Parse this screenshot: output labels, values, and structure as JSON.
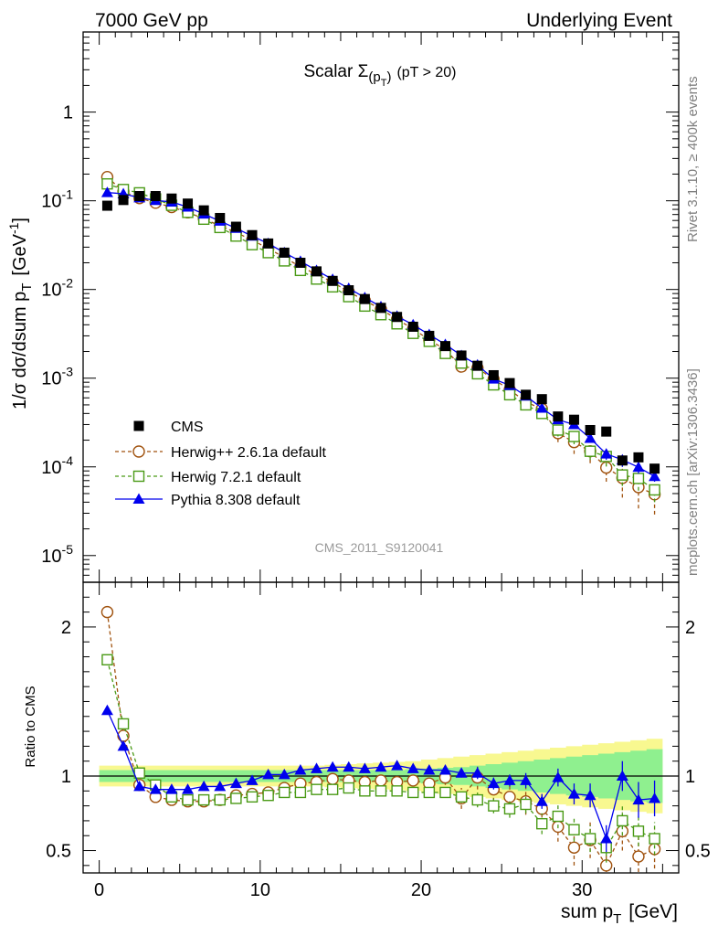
{
  "header": {
    "left": "7000 GeV pp",
    "right": "Underlying Event"
  },
  "side_labels": {
    "rivet": "Rivet 3.1.10, ≥ 400k events",
    "mcplots": "mcplots.cern.ch [arXiv:1306.3436]"
  },
  "watermark": "CMS_2011_S9120041",
  "chart_data": [
    {
      "type": "scatter",
      "panel": "main",
      "title_main": "Scalar Σ",
      "title_sub": "(p",
      "title_subT": "T",
      "title_close": ")",
      "title_cut": "(pT > 20)",
      "ylabel": "1/σ dσ/dsum p",
      "ylabel_sub": "T",
      "ylabel_unit": "[GeV",
      "ylabel_unit_sup": "-1",
      "ylabel_unit_close": "]",
      "yscale": "log",
      "xlim": [
        -1,
        36
      ],
      "ylim": [
        5e-06,
        8
      ],
      "ytick_labels": [
        {
          "value": 1,
          "base": "1",
          "exp": ""
        },
        {
          "value": 0.1,
          "base": "10",
          "exp": "-1"
        },
        {
          "value": 0.01,
          "base": "10",
          "exp": "-2"
        },
        {
          "value": 0.001,
          "base": "10",
          "exp": "-3"
        },
        {
          "value": 0.0001,
          "base": "10",
          "exp": "-4"
        },
        {
          "value": 1e-05,
          "base": "10",
          "exp": "-5"
        }
      ],
      "legend": {
        "placement": "lower-left",
        "entries": [
          {
            "key": "cms",
            "label": "CMS"
          },
          {
            "key": "herwigpp",
            "label": "Herwig++ 2.6.1a default"
          },
          {
            "key": "herwig7",
            "label": "Herwig 7.2.1 default"
          },
          {
            "key": "pythia",
            "label": "Pythia 8.308 default"
          }
        ]
      },
      "x": [
        0.5,
        1.5,
        2.5,
        3.5,
        4.5,
        5.5,
        6.5,
        7.5,
        8.5,
        9.5,
        10.5,
        11.5,
        12.5,
        13.5,
        14.5,
        15.5,
        16.5,
        17.5,
        18.5,
        19.5,
        20.5,
        21.5,
        22.5,
        23.5,
        24.5,
        25.5,
        26.5,
        27.5,
        28.5,
        29.5,
        30.5,
        31.5,
        32.5,
        33.5,
        34.5
      ],
      "series": [
        {
          "key": "cms",
          "values": [
            0.088,
            0.102,
            0.113,
            0.113,
            0.106,
            0.093,
            0.078,
            0.064,
            0.051,
            0.041,
            0.033,
            0.026,
            0.02,
            0.016,
            0.0125,
            0.0098,
            0.0078,
            0.0062,
            0.0049,
            0.0038,
            0.003,
            0.0023,
            0.0018,
            0.00138,
            0.00108,
            0.00088,
            0.00065,
            0.00058,
            0.00037,
            0.00034,
            0.00026,
            0.00025,
            0.000118,
            0.000128,
            9.55e-05
          ]
        },
        {
          "key": "herwigpp",
          "values": [
            0.185,
            0.127,
            0.107,
            0.095,
            0.085,
            0.074,
            0.063,
            0.052,
            0.044,
            0.036,
            0.029,
            0.023,
            0.018,
            0.0149,
            0.0121,
            0.0094,
            0.0075,
            0.006,
            0.0046,
            0.0036,
            0.0027,
            0.0021,
            0.00135,
            0.0013,
            0.00097,
            0.00074,
            0.00054,
            0.00045,
            0.00024,
            0.00019,
            0.00015,
            9.8e-05,
            7.5e-05,
            5.9e-05,
            4.9e-05
          ],
          "err_lo": [
            0,
            0,
            0,
            0,
            0,
            0,
            0,
            0,
            0,
            0,
            0,
            0,
            0,
            0,
            0,
            0,
            0,
            0,
            0,
            0,
            0,
            0,
            0,
            0,
            0,
            0,
            0,
            0,
            5e-05,
            5e-05,
            4e-05,
            3e-05,
            3e-05,
            2.5e-05,
            2e-05
          ],
          "err_hi": [
            0,
            0,
            0,
            0,
            0,
            0,
            0,
            0,
            0,
            0,
            0,
            0,
            0,
            0,
            0,
            0,
            0,
            0,
            0,
            0,
            0,
            0,
            0,
            0,
            0,
            0,
            0,
            0,
            4e-05,
            4e-05,
            3e-05,
            2e-05,
            2e-05,
            2e-05,
            1.5e-05
          ]
        },
        {
          "key": "herwig7",
          "values": [
            0.155,
            0.134,
            0.123,
            0.105,
            0.089,
            0.074,
            0.062,
            0.05,
            0.04,
            0.032,
            0.026,
            0.021,
            0.0164,
            0.0131,
            0.0107,
            0.0083,
            0.0065,
            0.0052,
            0.0041,
            0.0032,
            0.0026,
            0.0019,
            0.00148,
            0.00112,
            0.00084,
            0.00065,
            0.0005,
            0.0004,
            0.00026,
            0.00022,
            0.00015,
            0.000131,
            8.1e-05,
            7.4e-05,
            5.5e-05
          ],
          "err_lo": [
            0,
            0,
            0,
            0,
            0,
            0,
            0,
            0,
            0,
            0,
            0,
            0,
            0,
            0,
            0,
            0,
            0,
            0,
            0,
            0,
            0,
            0,
            0,
            0,
            0,
            0,
            0,
            0,
            4e-05,
            4e-05,
            3e-05,
            3e-05,
            2e-05,
            2e-05,
            1.5e-05
          ],
          "err_hi": [
            0,
            0,
            0,
            0,
            0,
            0,
            0,
            0,
            0,
            0,
            0,
            0,
            0,
            0,
            0,
            0,
            0,
            0,
            0,
            0,
            0,
            0,
            0,
            0,
            0,
            0,
            0,
            0,
            3e-05,
            3e-05,
            2e-05,
            2e-05,
            2e-05,
            1.5e-05,
            1e-05
          ]
        },
        {
          "key": "pythia",
          "values": [
            0.124,
            0.12,
            0.108,
            0.101,
            0.097,
            0.085,
            0.071,
            0.059,
            0.049,
            0.04,
            0.033,
            0.026,
            0.0208,
            0.0164,
            0.013,
            0.0103,
            0.0081,
            0.0064,
            0.005,
            0.004,
            0.0031,
            0.0024,
            0.0018,
            0.00141,
            0.00098,
            0.00083,
            0.00063,
            0.00046,
            0.00034,
            0.0003,
            0.00021,
            0.00014,
            0.00012,
            9.9e-05,
            7.8e-05
          ],
          "err_lo": [
            0,
            0,
            0,
            0,
            0,
            0,
            0,
            0,
            0,
            0,
            0,
            0,
            0,
            0,
            0,
            0,
            0,
            0,
            0,
            0,
            0,
            0,
            0,
            0,
            0,
            0,
            0,
            0,
            3e-05,
            3e-05,
            2e-05,
            2e-05,
            2e-05,
            1.5e-05,
            1e-05
          ],
          "err_hi": [
            0,
            0,
            0,
            0,
            0,
            0,
            0,
            0,
            0,
            0,
            0,
            0,
            0,
            0,
            0,
            0,
            0,
            0,
            0,
            0,
            0,
            0,
            0,
            0,
            0,
            0,
            0,
            0,
            2e-05,
            2e-05,
            2e-05,
            1.5e-05,
            1.5e-05,
            1e-05,
            1e-05
          ]
        }
      ]
    },
    {
      "type": "scatter",
      "panel": "ratio",
      "xlabel": "sum p",
      "xlabel_sub": "T",
      "xlabel_unit": "[GeV]",
      "ylabel": "Ratio to CMS",
      "xlim": [
        -1,
        36
      ],
      "ylim": [
        0.35,
        2.3
      ],
      "xticks": [
        0,
        10,
        20,
        30
      ],
      "yticks": [
        0.5,
        1,
        2
      ],
      "ytick_labels": [
        "0.5",
        "1",
        "2"
      ],
      "x": [
        0.5,
        1.5,
        2.5,
        3.5,
        4.5,
        5.5,
        6.5,
        7.5,
        8.5,
        9.5,
        10.5,
        11.5,
        12.5,
        13.5,
        14.5,
        15.5,
        16.5,
        17.5,
        18.5,
        19.5,
        20.5,
        21.5,
        22.5,
        23.5,
        24.5,
        25.5,
        26.5,
        27.5,
        28.5,
        29.5,
        30.5,
        31.5,
        32.5,
        33.5,
        34.5
      ],
      "band_inner": [
        0.04,
        0.04,
        0.04,
        0.04,
        0.04,
        0.04,
        0.04,
        0.04,
        0.04,
        0.04,
        0.04,
        0.04,
        0.04,
        0.04,
        0.04,
        0.04,
        0.04,
        0.04,
        0.04,
        0.045,
        0.05,
        0.055,
        0.06,
        0.07,
        0.08,
        0.09,
        0.1,
        0.11,
        0.12,
        0.13,
        0.14,
        0.15,
        0.16,
        0.17,
        0.18
      ],
      "band_outer": [
        0.07,
        0.07,
        0.07,
        0.07,
        0.07,
        0.07,
        0.07,
        0.07,
        0.07,
        0.07,
        0.07,
        0.07,
        0.07,
        0.07,
        0.075,
        0.08,
        0.085,
        0.09,
        0.095,
        0.1,
        0.11,
        0.12,
        0.13,
        0.14,
        0.15,
        0.16,
        0.17,
        0.18,
        0.19,
        0.2,
        0.21,
        0.22,
        0.23,
        0.24,
        0.25
      ],
      "series": [
        {
          "key": "herwigpp",
          "values": [
            2.1,
            1.27,
            0.94,
            0.86,
            0.84,
            0.83,
            0.83,
            0.84,
            0.87,
            0.88,
            0.89,
            0.92,
            0.95,
            0.96,
            0.98,
            0.97,
            0.96,
            0.97,
            0.96,
            0.97,
            0.95,
            0.99,
            0.85,
            0.99,
            0.91,
            0.86,
            0.83,
            0.78,
            0.66,
            0.52,
            0.57,
            0.4,
            0.63,
            0.46,
            0.51
          ],
          "err": [
            0,
            0,
            0,
            0,
            0,
            0,
            0,
            0,
            0,
            0,
            0,
            0,
            0,
            0,
            0,
            0,
            0,
            0,
            0,
            0,
            0.03,
            0.05,
            0.07,
            0.08,
            0.08,
            0.08,
            0.09,
            0.1,
            0.1,
            0.12,
            0.12,
            0.12,
            0.13,
            0.13,
            0.13
          ]
        },
        {
          "key": "herwig7",
          "values": [
            1.78,
            1.35,
            1.02,
            0.94,
            0.86,
            0.84,
            0.84,
            0.84,
            0.85,
            0.86,
            0.87,
            0.89,
            0.89,
            0.91,
            0.91,
            0.92,
            0.9,
            0.9,
            0.9,
            0.89,
            0.89,
            0.89,
            0.86,
            0.84,
            0.8,
            0.78,
            0.81,
            0.68,
            0.73,
            0.64,
            0.58,
            0.52,
            0.7,
            0.63,
            0.58
          ],
          "err": [
            0,
            0,
            0,
            0,
            0,
            0,
            0,
            0,
            0,
            0,
            0,
            0,
            0,
            0,
            0,
            0,
            0,
            0,
            0,
            0,
            0.02,
            0.03,
            0.04,
            0.05,
            0.05,
            0.06,
            0.06,
            0.07,
            0.08,
            0.08,
            0.09,
            0.1,
            0.1,
            0.1,
            0.11
          ]
        },
        {
          "key": "pythia",
          "values": [
            1.44,
            1.2,
            0.93,
            0.91,
            0.91,
            0.91,
            0.93,
            0.93,
            0.95,
            0.97,
            1.01,
            1.01,
            1.04,
            1.05,
            1.06,
            1.06,
            1.05,
            1.06,
            1.07,
            1.05,
            1.04,
            1.04,
            1.02,
            1.02,
            0.95,
            0.97,
            0.97,
            0.83,
            0.99,
            0.88,
            0.87,
            0.58,
            1.0,
            0.84,
            0.85
          ],
          "err": [
            0,
            0,
            0,
            0,
            0,
            0,
            0,
            0,
            0,
            0,
            0,
            0,
            0,
            0,
            0,
            0,
            0,
            0,
            0,
            0,
            0.02,
            0.02,
            0.03,
            0.04,
            0.04,
            0.04,
            0.05,
            0.05,
            0.06,
            0.07,
            0.08,
            0.09,
            0.1,
            0.12,
            0.12
          ]
        }
      ]
    }
  ],
  "styles": {
    "cms": {
      "color": "#000000"
    },
    "herwigpp": {
      "color": "#a0520e"
    },
    "herwig7": {
      "color": "#4a9a16"
    },
    "pythia": {
      "color": "#0000ee"
    },
    "band_inner_color": "#8ff08f",
    "band_outer_color": "#f8f890"
  }
}
